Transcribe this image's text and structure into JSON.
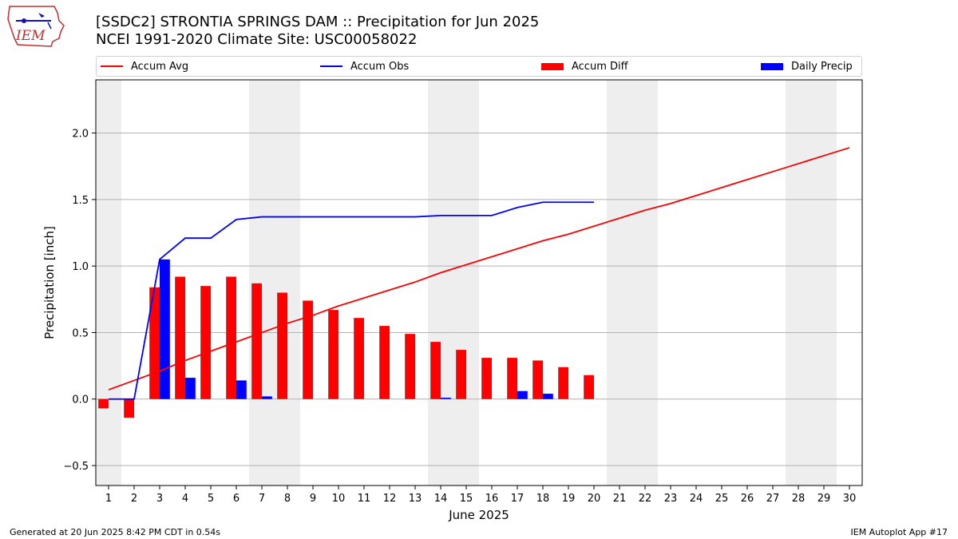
{
  "header": {
    "title_line1": "[SSDC2] STRONTIA SPRINGS DAM :: Precipitation for Jun 2025",
    "title_line2": "NCEI 1991-2020 Climate Site: USC00058022"
  },
  "logo": {
    "text": "IEM"
  },
  "footer": {
    "generated": "Generated at 20 Jun 2025 8:42 PM CDT in 0.54s",
    "app": "IEM Autoplot App #17"
  },
  "colors": {
    "avg": "#ff0000",
    "obs": "#0000ff",
    "diff": "#ff0000",
    "daily": "#0000ff",
    "weekend": "#eeeeee",
    "grid": "#b0b0b0"
  },
  "chart_data": {
    "type": "bar",
    "xlabel": "June 2025",
    "ylabel": "Precipitation [inch]",
    "xlim": [
      0.5,
      30.5
    ],
    "ylim": [
      -0.65,
      2.4
    ],
    "yticks": [
      -0.5,
      0.0,
      0.5,
      1.0,
      1.5,
      2.0
    ],
    "ytick_labels": [
      "−0.5",
      "0.0",
      "0.5",
      "1.0",
      "1.5",
      "2.0"
    ],
    "grid": "horizontal",
    "days": [
      1,
      2,
      3,
      4,
      5,
      6,
      7,
      8,
      9,
      10,
      11,
      12,
      13,
      14,
      15,
      16,
      17,
      18,
      19,
      20,
      21,
      22,
      23,
      24,
      25,
      26,
      27,
      28,
      29,
      30
    ],
    "weekend_days": [
      1,
      7,
      8,
      14,
      15,
      21,
      22,
      28,
      29
    ],
    "legend": {
      "accum_avg": "Accum Avg",
      "accum_obs": "Accum Obs",
      "accum_diff": "Accum Diff",
      "daily_precip": "Daily Precip"
    },
    "accum_avg": [
      0.07,
      0.14,
      0.21,
      0.29,
      0.36,
      0.43,
      0.5,
      0.57,
      0.63,
      0.7,
      0.76,
      0.82,
      0.88,
      0.95,
      1.01,
      1.07,
      1.13,
      1.19,
      1.24,
      1.3,
      1.36,
      1.42,
      1.47,
      1.53,
      1.59,
      1.65,
      1.71,
      1.77,
      1.83,
      1.89
    ],
    "accum_obs": [
      0.0,
      0.0,
      1.05,
      1.21,
      1.21,
      1.35,
      1.37,
      1.37,
      1.37,
      1.37,
      1.37,
      1.37,
      1.37,
      1.38,
      1.38,
      1.38,
      1.44,
      1.48,
      1.48,
      1.48
    ],
    "accum_diff": [
      -0.07,
      -0.14,
      0.84,
      0.92,
      0.85,
      0.92,
      0.87,
      0.8,
      0.74,
      0.67,
      0.61,
      0.55,
      0.49,
      0.43,
      0.37,
      0.31,
      0.31,
      0.29,
      0.24,
      0.18
    ],
    "daily_precip": [
      0.0,
      0.0,
      1.05,
      0.16,
      0.0,
      0.14,
      0.02,
      0.0,
      0.0,
      0.0,
      0.0,
      0.0,
      0.0,
      0.01,
      0.0,
      0.0,
      0.06,
      0.04,
      0.0,
      0.0
    ]
  }
}
